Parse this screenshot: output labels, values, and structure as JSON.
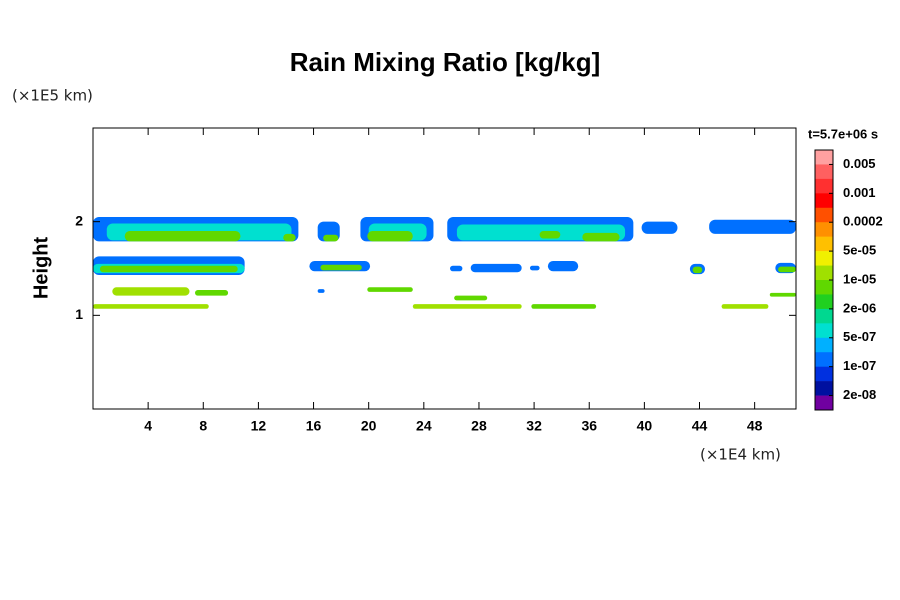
{
  "chart_data": {
    "type": "contour",
    "title": "Rain Mixing Ratio [kg/kg]",
    "y_unit": "(×1E5 km)",
    "x_unit": "(×1E4 km)",
    "ylabel": "Height",
    "colorbar_title": "t=5.7e+06 s",
    "xlim": [
      0,
      51
    ],
    "ylim": [
      0,
      3
    ],
    "xticks": [
      4,
      8,
      12,
      16,
      20,
      24,
      28,
      32,
      36,
      40,
      44,
      48
    ],
    "yticks": [
      1,
      2
    ],
    "colorbar": {
      "colors": [
        "#ffa0a0",
        "#ff6060",
        "#ff3030",
        "#ff0000",
        "#ff5000",
        "#ff9000",
        "#ffc000",
        "#f0f000",
        "#a0e000",
        "#60d800",
        "#20d020",
        "#00d890",
        "#00e0d0",
        "#00b0ff",
        "#0070ff",
        "#0030e0",
        "#0010a0",
        "#7000a0"
      ],
      "levels": [
        0.005,
        0.001,
        0.0002,
        {
          "value": 5e-05,
          "label": "5e-05"
        },
        {
          "value": 1e-05,
          "label": "1e-05"
        },
        {
          "value": 2e-06,
          "label": "2e-06"
        },
        {
          "value": 5e-07,
          "label": "5e-07"
        },
        {
          "value": 1e-07,
          "label": "1e-07"
        },
        {
          "value": 2e-08,
          "label": "2e-08"
        }
      ]
    },
    "cells": [
      {
        "x": [
          0,
          14.9
        ],
        "y": [
          1.79,
          2.05
        ],
        "value": 1.5e-07
      },
      {
        "x": [
          16.3,
          17.9
        ],
        "y": [
          1.79,
          2.0
        ],
        "value": 1.5e-07
      },
      {
        "x": [
          19.4,
          24.7
        ],
        "y": [
          1.79,
          2.05
        ],
        "value": 1.5e-07
      },
      {
        "x": [
          25.7,
          39.2
        ],
        "y": [
          1.79,
          2.05
        ],
        "value": 1.5e-07
      },
      {
        "x": [
          39.8,
          42.4
        ],
        "y": [
          1.87,
          2.0
        ],
        "value": 1.5e-07
      },
      {
        "x": [
          44.7,
          51
        ],
        "y": [
          1.87,
          2.02
        ],
        "value": 1.5e-07
      },
      {
        "x": [
          1.0,
          14.4
        ],
        "y": [
          1.8,
          1.98
        ],
        "value": 8e-07
      },
      {
        "x": [
          20.0,
          24.2
        ],
        "y": [
          1.8,
          1.98
        ],
        "value": 8e-07
      },
      {
        "x": [
          26.4,
          38.6
        ],
        "y": [
          1.8,
          1.97
        ],
        "value": 8e-07
      },
      {
        "x": [
          2.3,
          10.7
        ],
        "y": [
          1.79,
          1.9
        ],
        "value": 5e-06
      },
      {
        "x": [
          13.8,
          14.7
        ],
        "y": [
          1.79,
          1.87
        ],
        "value": 5e-06
      },
      {
        "x": [
          16.7,
          17.8
        ],
        "y": [
          1.79,
          1.86
        ],
        "value": 5e-06
      },
      {
        "x": [
          19.9,
          23.2
        ],
        "y": [
          1.79,
          1.9
        ],
        "value": 5e-06
      },
      {
        "x": [
          32.4,
          33.9
        ],
        "y": [
          1.82,
          1.9
        ],
        "value": 5e-06
      },
      {
        "x": [
          35.5,
          38.2
        ],
        "y": [
          1.79,
          1.88
        ],
        "value": 5e-06
      },
      {
        "x": [
          0,
          11
        ],
        "y": [
          1.43,
          1.63
        ],
        "value": 1.5e-07
      },
      {
        "x": [
          15.7,
          20.1
        ],
        "y": [
          1.47,
          1.58
        ],
        "value": 1.5e-07
      },
      {
        "x": [
          25.9,
          26.8
        ],
        "y": [
          1.47,
          1.53
        ],
        "value": 1.5e-07
      },
      {
        "x": [
          27.4,
          31.1
        ],
        "y": [
          1.46,
          1.55
        ],
        "value": 1.5e-07
      },
      {
        "x": [
          31.7,
          32.4
        ],
        "y": [
          1.48,
          1.53
        ],
        "value": 1.5e-07
      },
      {
        "x": [
          33.0,
          35.2
        ],
        "y": [
          1.47,
          1.58
        ],
        "value": 1.5e-07
      },
      {
        "x": [
          43.3,
          44.4
        ],
        "y": [
          1.44,
          1.55
        ],
        "value": 1.5e-07
      },
      {
        "x": [
          49.5,
          51
        ],
        "y": [
          1.45,
          1.56
        ],
        "value": 1.5e-07
      },
      {
        "x": [
          0,
          11
        ],
        "y": [
          1.45,
          1.55
        ],
        "value": 8e-07
      },
      {
        "x": [
          0.5,
          10.5
        ],
        "y": [
          1.46,
          1.53
        ],
        "value": 5e-06
      },
      {
        "x": [
          16.5,
          19.5
        ],
        "y": [
          1.48,
          1.54
        ],
        "value": 5e-06
      },
      {
        "x": [
          43.5,
          44.2
        ],
        "y": [
          1.45,
          1.52
        ],
        "value": 5e-06
      },
      {
        "x": [
          49.7,
          51
        ],
        "y": [
          1.46,
          1.52
        ],
        "value": 5e-06
      },
      {
        "x": [
          1.4,
          7.0
        ],
        "y": [
          1.21,
          1.3
        ],
        "value": 2e-05
      },
      {
        "x": [
          7.4,
          9.8
        ],
        "y": [
          1.21,
          1.27
        ],
        "value": 5e-06
      },
      {
        "x": [
          16.3,
          16.8
        ],
        "y": [
          1.24,
          1.28
        ],
        "value": 1.5e-07
      },
      {
        "x": [
          19.9,
          23.2
        ],
        "y": [
          1.25,
          1.3
        ],
        "value": 5e-06
      },
      {
        "x": [
          26.2,
          28.6
        ],
        "y": [
          1.16,
          1.21
        ],
        "value": 5e-06
      },
      {
        "x": [
          0,
          8.4
        ],
        "y": [
          1.07,
          1.12
        ],
        "value": 2e-05
      },
      {
        "x": [
          23.2,
          31.1
        ],
        "y": [
          1.07,
          1.12
        ],
        "value": 2e-05
      },
      {
        "x": [
          31.8,
          36.5
        ],
        "y": [
          1.07,
          1.12
        ],
        "value": 5e-06
      },
      {
        "x": [
          45.6,
          49.0
        ],
        "y": [
          1.07,
          1.12
        ],
        "value": 2e-05
      },
      {
        "x": [
          49.1,
          51
        ],
        "y": [
          1.2,
          1.24
        ],
        "value": 5e-06
      }
    ]
  }
}
